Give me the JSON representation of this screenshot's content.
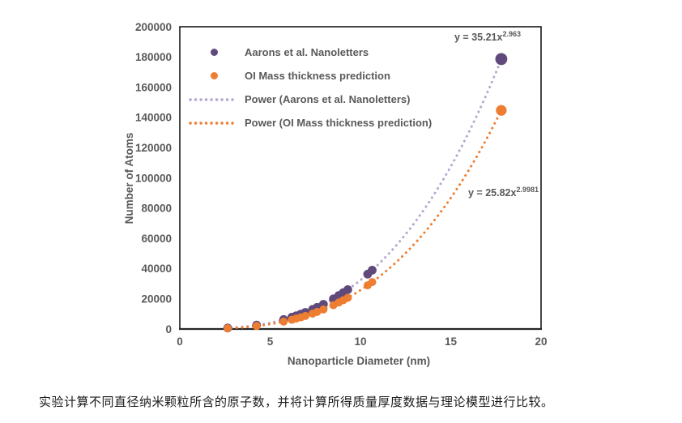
{
  "figure": {
    "caption": "实验计算不同直径纳米颗粒所含的原子数，并将计算所得质量厚度数据与理论模型进行比较。"
  },
  "chart_data": {
    "type": "scatter",
    "title": "",
    "xlabel": "Nanoparticle Diameter (nm)",
    "ylabel": "Number of Atoms",
    "xlim": [
      0,
      20
    ],
    "ylim": [
      0,
      200000
    ],
    "x_ticks": [
      0,
      5,
      10,
      15,
      20
    ],
    "y_ticks": [
      0,
      20000,
      40000,
      60000,
      80000,
      100000,
      120000,
      140000,
      160000,
      180000,
      200000
    ],
    "grid": false,
    "legend_position": "inside-top-left",
    "series": [
      {
        "name": "Aarons et al. Nanoletters",
        "kind": "scatter",
        "marker": "circle",
        "color": "#604a7b",
        "x": [
          2.65,
          4.25,
          5.75,
          6.2,
          6.45,
          6.7,
          6.95,
          7.35,
          7.6,
          7.95,
          8.5,
          8.8,
          9.05,
          9.3,
          10.4,
          10.65,
          17.8
        ],
        "y": [
          630,
          2560,
          6270,
          7850,
          8820,
          9870,
          11000,
          12990,
          14330,
          16380,
          19970,
          22130,
          24050,
          26070,
          36300,
          38940,
          178580
        ]
      },
      {
        "name": "OI Mass thickness prediction",
        "kind": "scatter",
        "marker": "circle",
        "color": "#ed7d31",
        "x": [
          2.65,
          4.25,
          5.75,
          6.2,
          6.45,
          6.7,
          6.95,
          7.35,
          7.6,
          7.95,
          8.5,
          8.8,
          9.05,
          9.3,
          10.4,
          10.65,
          17.8
        ],
        "y": [
          480,
          1980,
          4890,
          6130,
          6900,
          7740,
          8630,
          10210,
          11290,
          12930,
          15790,
          17520,
          19050,
          20670,
          28890,
          31040,
          144670
        ]
      },
      {
        "name": "Power (Aarons et al. Nanoletters)",
        "kind": "power-trendline",
        "color": "#b4a5cf",
        "coefficient": 35.21,
        "exponent": 2.963,
        "x_range": [
          2.55,
          17.8
        ]
      },
      {
        "name": "Power (OI Mass thickness prediction)",
        "kind": "power-trendline",
        "color": "#ed7d31",
        "coefficient": 25.82,
        "exponent": 2.9981,
        "x_range": [
          2.55,
          17.8
        ]
      }
    ],
    "annotations": [
      {
        "base": "y = 35.21x",
        "exponent": "2.963"
      },
      {
        "base": "y = 25.82x",
        "exponent": "2.9981"
      }
    ],
    "colors": {
      "text_gray": "#595959",
      "axis_line": "#262626",
      "caption_text": "#1a1a1a"
    }
  }
}
